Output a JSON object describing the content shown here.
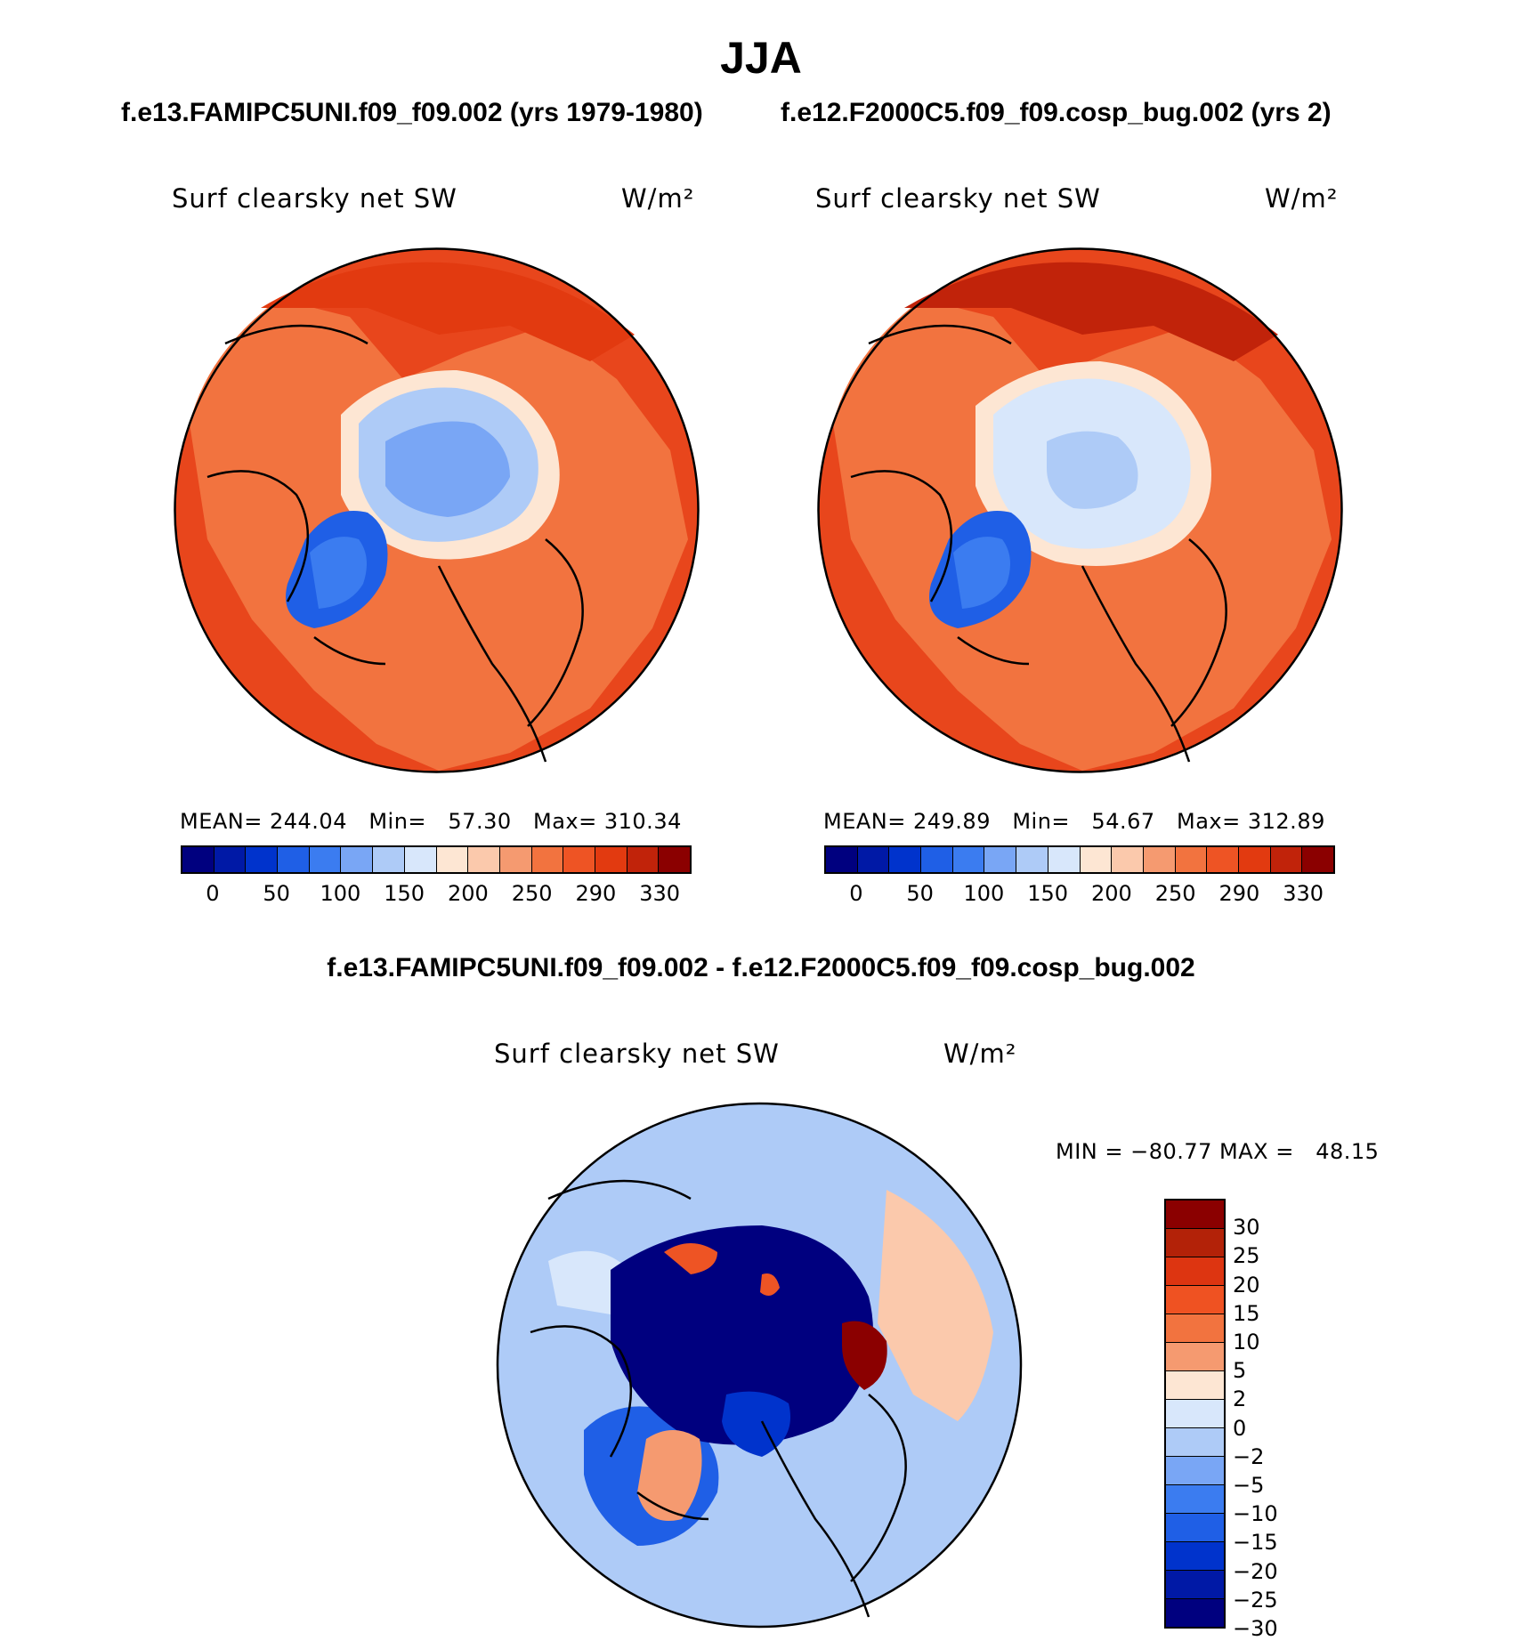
{
  "header": {
    "season": "JJA",
    "case1": "f.e13.FAMIPC5UNI.f09_f09.002 (yrs 1979-1980)",
    "case2": "f.e12.F2000C5.f09_f09.cosp_bug.002 (yrs 2)",
    "diff_title": "f.e13.FAMIPC5UNI.f09_f09.002 - f.e12.F2000C5.f09_f09.cosp_bug.002"
  },
  "panels": {
    "left": {
      "title": "Surf clearsky net SW",
      "units": "W/m²",
      "stats": "MEAN= 244.04   Min=   57.30   Max= 310.34"
    },
    "right": {
      "title": "Surf clearsky net SW",
      "units": "W/m²",
      "stats": "MEAN= 249.89   Min=   54.67   Max= 312.89"
    },
    "diff": {
      "title": "Surf clearsky net SW",
      "units": "W/m²",
      "stats": "MIN = −80.77 MAX =   48.15"
    }
  },
  "colorbar_abs": {
    "colors": [
      "#00007f",
      "#0019a6",
      "#0033cc",
      "#1f5fe6",
      "#3b7cf0",
      "#79a6f5",
      "#aecbf7",
      "#d8e7fb",
      "#fde6d3",
      "#fbc9ac",
      "#f59a70",
      "#f2733f",
      "#ee5424",
      "#e23a10",
      "#c1230a",
      "#8b0000"
    ],
    "labels": [
      "0",
      "50",
      "100",
      "150",
      "200",
      "250",
      "290",
      "330"
    ]
  },
  "colorbar_diff": {
    "colors": [
      "#8b0000",
      "#b32208",
      "#dd3511",
      "#ef5222",
      "#f2733f",
      "#f59a70",
      "#fde6d3",
      "#d8e7fb",
      "#aecbf7",
      "#79a6f5",
      "#3b7cf0",
      "#1f5fe6",
      "#0033cc",
      "#0019a6",
      "#00007f"
    ],
    "labels": [
      "30",
      "25",
      "20",
      "15",
      "10",
      "5",
      "2",
      "0",
      "−2",
      "−5",
      "−10",
      "−15",
      "−20",
      "−25",
      "−30"
    ]
  },
  "colors": {
    "ocean_warm": "#e8461c",
    "land_warm": "#f2733f",
    "ice_blue": "#79a6f5",
    "ice_light": "#d8e7fb",
    "greenland": "#1f5fe6",
    "diff_bg": "#aecbf7",
    "diff_arctic": "#00007f"
  }
}
